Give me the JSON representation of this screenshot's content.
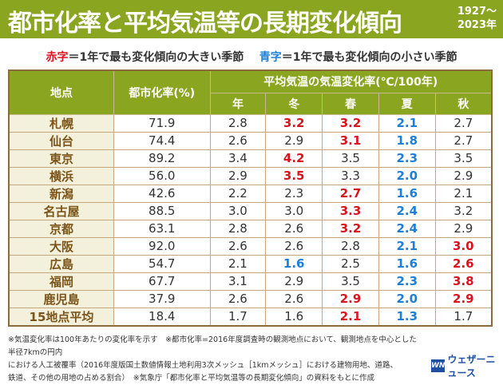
{
  "title": "都市化率と平均気温等の長期変化傾向",
  "period": [
    "1927～",
    "2023年"
  ],
  "legend": {
    "red_label": "赤字",
    "red_text": "＝1年で最も変化傾向の大きい季節",
    "blue_label": "青字",
    "blue_text": "＝1年で最も変化傾向の小さい季節"
  },
  "colors": {
    "header": "#8aa51f",
    "red": "#d8141e",
    "blue": "#1e7fd8"
  },
  "table": {
    "headers": {
      "place": "地点",
      "urban": "都市化率(%)",
      "temp": "平均気温の気温変化率(℃/100年)",
      "seasons": [
        "年",
        "冬",
        "春",
        "夏",
        "秋"
      ]
    },
    "rows": [
      {
        "place": "札幌",
        "urban": "71.9",
        "vals": [
          "2.8",
          "3.2",
          "3.2",
          "2.1",
          "2.7"
        ],
        "hl": [
          "",
          "r",
          "r",
          "b",
          ""
        ]
      },
      {
        "place": "仙台",
        "urban": "74.4",
        "vals": [
          "2.6",
          "2.9",
          "3.1",
          "1.8",
          "2.7"
        ],
        "hl": [
          "",
          "",
          "r",
          "b",
          ""
        ]
      },
      {
        "place": "東京",
        "urban": "89.2",
        "vals": [
          "3.4",
          "4.2",
          "3.5",
          "2.3",
          "3.5"
        ],
        "hl": [
          "",
          "r",
          "",
          "b",
          ""
        ]
      },
      {
        "place": "横浜",
        "urban": "56.0",
        "vals": [
          "2.9",
          "3.5",
          "3.3",
          "2.0",
          "2.9"
        ],
        "hl": [
          "",
          "r",
          "",
          "b",
          ""
        ]
      },
      {
        "place": "新潟",
        "urban": "42.6",
        "vals": [
          "2.2",
          "2.3",
          "2.7",
          "1.6",
          "2.1"
        ],
        "hl": [
          "",
          "",
          "r",
          "b",
          ""
        ]
      },
      {
        "place": "名古屋",
        "urban": "88.5",
        "vals": [
          "3.0",
          "3.0",
          "3.3",
          "2.4",
          "3.2"
        ],
        "hl": [
          "",
          "",
          "r",
          "b",
          ""
        ]
      },
      {
        "place": "京都",
        "urban": "63.1",
        "vals": [
          "2.8",
          "2.6",
          "3.2",
          "2.4",
          "2.9"
        ],
        "hl": [
          "",
          "",
          "r",
          "b",
          ""
        ]
      },
      {
        "place": "大阪",
        "urban": "92.0",
        "vals": [
          "2.6",
          "2.6",
          "2.8",
          "2.1",
          "3.0"
        ],
        "hl": [
          "",
          "",
          "",
          "b",
          "r"
        ]
      },
      {
        "place": "広島",
        "urban": "54.7",
        "vals": [
          "2.1",
          "1.6",
          "2.5",
          "1.6",
          "2.6"
        ],
        "hl": [
          "",
          "b",
          "",
          "b",
          "r"
        ]
      },
      {
        "place": "福岡",
        "urban": "67.7",
        "vals": [
          "3.1",
          "2.9",
          "3.5",
          "2.3",
          "3.8"
        ],
        "hl": [
          "",
          "",
          "",
          "b",
          "r"
        ]
      },
      {
        "place": "鹿児島",
        "urban": "37.9",
        "vals": [
          "2.6",
          "2.6",
          "2.9",
          "2.0",
          "2.9"
        ],
        "hl": [
          "",
          "",
          "r",
          "b",
          "r"
        ]
      },
      {
        "place": "15地点平均",
        "urban": "18.4",
        "vals": [
          "1.7",
          "1.6",
          "2.1",
          "1.3",
          "1.7"
        ],
        "hl": [
          "",
          "",
          "r",
          "b",
          ""
        ]
      }
    ]
  },
  "notes": [
    "※気温変化率は100年あたりの変化率を示す　※都市化率=2016年度調査時の観測地点において、観測地点を中心とした半径7kmの円内",
    "における人工被覆率（2016年度版国土数値情報土地利用3次メッシュ［1kmメッシュ］における建物用地、道路、",
    "鉄道、その他の用地の占める割合）　※気象庁「都市化率と平均気温等の長期変化傾向」の資料をもとに作成"
  ],
  "logo": {
    "mark": "WN",
    "text": "ウェザーニュース"
  }
}
